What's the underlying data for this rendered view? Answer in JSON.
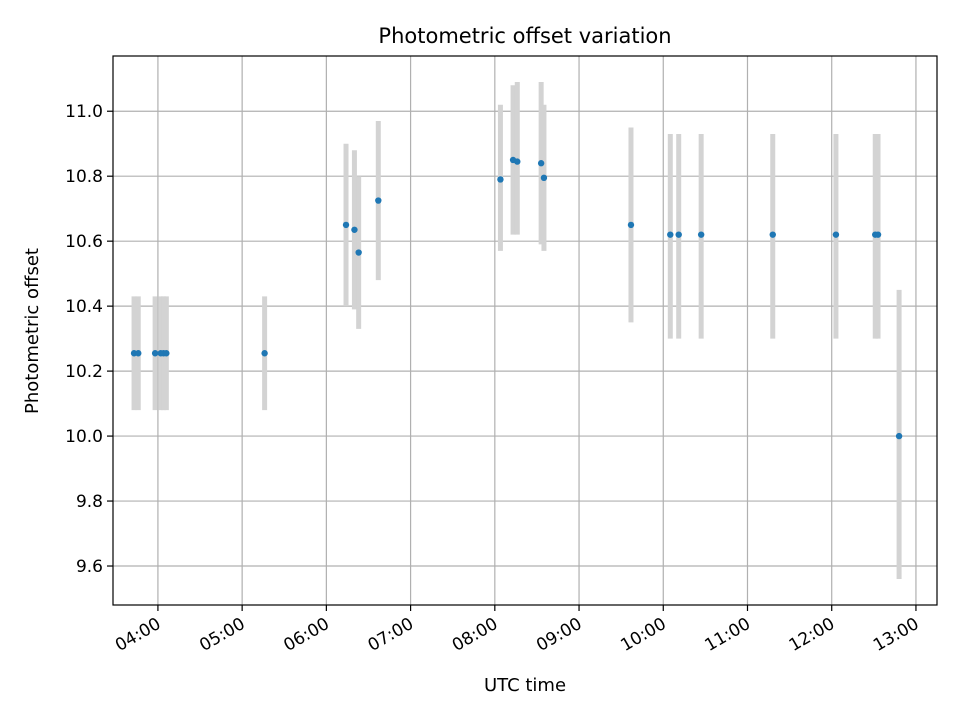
{
  "chart_data": {
    "type": "scatter",
    "title": "Photometric offset variation",
    "xlabel": "UTC time",
    "ylabel": "Photometric offset",
    "x_tick_labels": [
      "04:00",
      "05:00",
      "06:00",
      "07:00",
      "08:00",
      "09:00",
      "10:00",
      "11:00",
      "12:00",
      "13:00"
    ],
    "x_ticks_hours": [
      4,
      5,
      6,
      7,
      8,
      9,
      10,
      11,
      12,
      13
    ],
    "y_tick_labels": [
      "9.6",
      "9.8",
      "10.0",
      "10.2",
      "10.4",
      "10.6",
      "10.8",
      "11.0"
    ],
    "y_ticks": [
      9.6,
      9.8,
      10.0,
      10.2,
      10.4,
      10.6,
      10.8,
      11.0
    ],
    "xlim": [
      "03:28",
      "13:15"
    ],
    "ylim": [
      9.48,
      11.17
    ],
    "grid": true,
    "marker_color": "#1f77b4",
    "errorbar_color": "#d3d3d3",
    "points": [
      {
        "time": "03:43",
        "y": 10.255,
        "ylow": 10.08,
        "yhigh": 10.43
      },
      {
        "time": "03:46",
        "y": 10.255,
        "ylow": 10.08,
        "yhigh": 10.43
      },
      {
        "time": "03:58",
        "y": 10.255,
        "ylow": 10.08,
        "yhigh": 10.43
      },
      {
        "time": "04:02",
        "y": 10.255,
        "ylow": 10.08,
        "yhigh": 10.43
      },
      {
        "time": "04:04",
        "y": 10.255,
        "ylow": 10.08,
        "yhigh": 10.43
      },
      {
        "time": "04:06",
        "y": 10.255,
        "ylow": 10.08,
        "yhigh": 10.43
      },
      {
        "time": "05:16",
        "y": 10.255,
        "ylow": 10.08,
        "yhigh": 10.43
      },
      {
        "time": "06:14",
        "y": 10.65,
        "ylow": 10.4,
        "yhigh": 10.9
      },
      {
        "time": "06:20",
        "y": 10.635,
        "ylow": 10.39,
        "yhigh": 10.88
      },
      {
        "time": "06:23",
        "y": 10.565,
        "ylow": 10.33,
        "yhigh": 10.8
      },
      {
        "time": "06:37",
        "y": 10.725,
        "ylow": 10.48,
        "yhigh": 10.97
      },
      {
        "time": "08:04",
        "y": 10.79,
        "ylow": 10.57,
        "yhigh": 11.02
      },
      {
        "time": "08:13",
        "y": 10.85,
        "ylow": 10.62,
        "yhigh": 11.08
      },
      {
        "time": "08:16",
        "y": 10.845,
        "ylow": 10.62,
        "yhigh": 11.09
      },
      {
        "time": "08:33",
        "y": 10.84,
        "ylow": 10.59,
        "yhigh": 11.09
      },
      {
        "time": "08:35",
        "y": 10.795,
        "ylow": 10.57,
        "yhigh": 11.02
      },
      {
        "time": "09:37",
        "y": 10.65,
        "ylow": 10.35,
        "yhigh": 10.95
      },
      {
        "time": "10:05",
        "y": 10.62,
        "ylow": 10.3,
        "yhigh": 10.93
      },
      {
        "time": "10:11",
        "y": 10.62,
        "ylow": 10.3,
        "yhigh": 10.93
      },
      {
        "time": "10:27",
        "y": 10.62,
        "ylow": 10.3,
        "yhigh": 10.93
      },
      {
        "time": "11:18",
        "y": 10.62,
        "ylow": 10.3,
        "yhigh": 10.93
      },
      {
        "time": "12:03",
        "y": 10.62,
        "ylow": 10.3,
        "yhigh": 10.93
      },
      {
        "time": "12:31",
        "y": 10.62,
        "ylow": 10.3,
        "yhigh": 10.93
      },
      {
        "time": "12:33",
        "y": 10.62,
        "ylow": 10.3,
        "yhigh": 10.93
      },
      {
        "time": "12:48",
        "y": 10.0,
        "ylow": 9.56,
        "yhigh": 10.45
      }
    ]
  }
}
